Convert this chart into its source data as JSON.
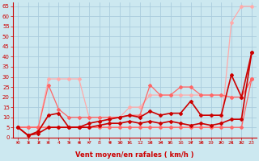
{
  "x": [
    0,
    1,
    2,
    3,
    4,
    5,
    6,
    7,
    8,
    9,
    10,
    11,
    12,
    13,
    14,
    15,
    16,
    17,
    18,
    19,
    20,
    21,
    22,
    23
  ],
  "line_light1": [
    5,
    5,
    5,
    5,
    5,
    5,
    5,
    5,
    5,
    5,
    5,
    5,
    5,
    5,
    5,
    5,
    5,
    5,
    5,
    5,
    5,
    57,
    65,
    65
  ],
  "line_light2": [
    5,
    5,
    5,
    29,
    29,
    29,
    29,
    10,
    10,
    10,
    10,
    15,
    15,
    21,
    21,
    21,
    21,
    21,
    21,
    21,
    21,
    20,
    20,
    29
  ],
  "line_med1": [
    5,
    5,
    5,
    26,
    14,
    10,
    10,
    10,
    10,
    10,
    10,
    11,
    11,
    26,
    21,
    21,
    25,
    25,
    21,
    21,
    21,
    20,
    20,
    29
  ],
  "line_med2": [
    5,
    5,
    5,
    5,
    5,
    5,
    5,
    5,
    5,
    5,
    5,
    5,
    5,
    5,
    5,
    5,
    5,
    5,
    5,
    5,
    5,
    5,
    5,
    29
  ],
  "line_dark1": [
    5,
    1,
    3,
    11,
    12,
    5,
    5,
    7,
    8,
    9,
    10,
    11,
    10,
    13,
    11,
    12,
    12,
    18,
    11,
    11,
    11,
    31,
    20,
    42
  ],
  "line_dark2": [
    5,
    1,
    2,
    5,
    5,
    5,
    5,
    5,
    6,
    7,
    7,
    8,
    7,
    8,
    7,
    8,
    7,
    6,
    7,
    6,
    7,
    9,
    9,
    42
  ],
  "color_dark": "#cc0000",
  "color_light": "#ffaaaa",
  "color_med": "#ff6666",
  "background": "#cce8f0",
  "grid_color": "#aaccdd",
  "xlabel": "Vent moyen/en rafales ( km/h )",
  "ylabel_ticks": [
    0,
    5,
    10,
    15,
    20,
    25,
    30,
    35,
    40,
    45,
    50,
    55,
    60,
    65
  ],
  "xlim": [
    -0.5,
    23.5
  ],
  "ylim": [
    0,
    67
  ]
}
